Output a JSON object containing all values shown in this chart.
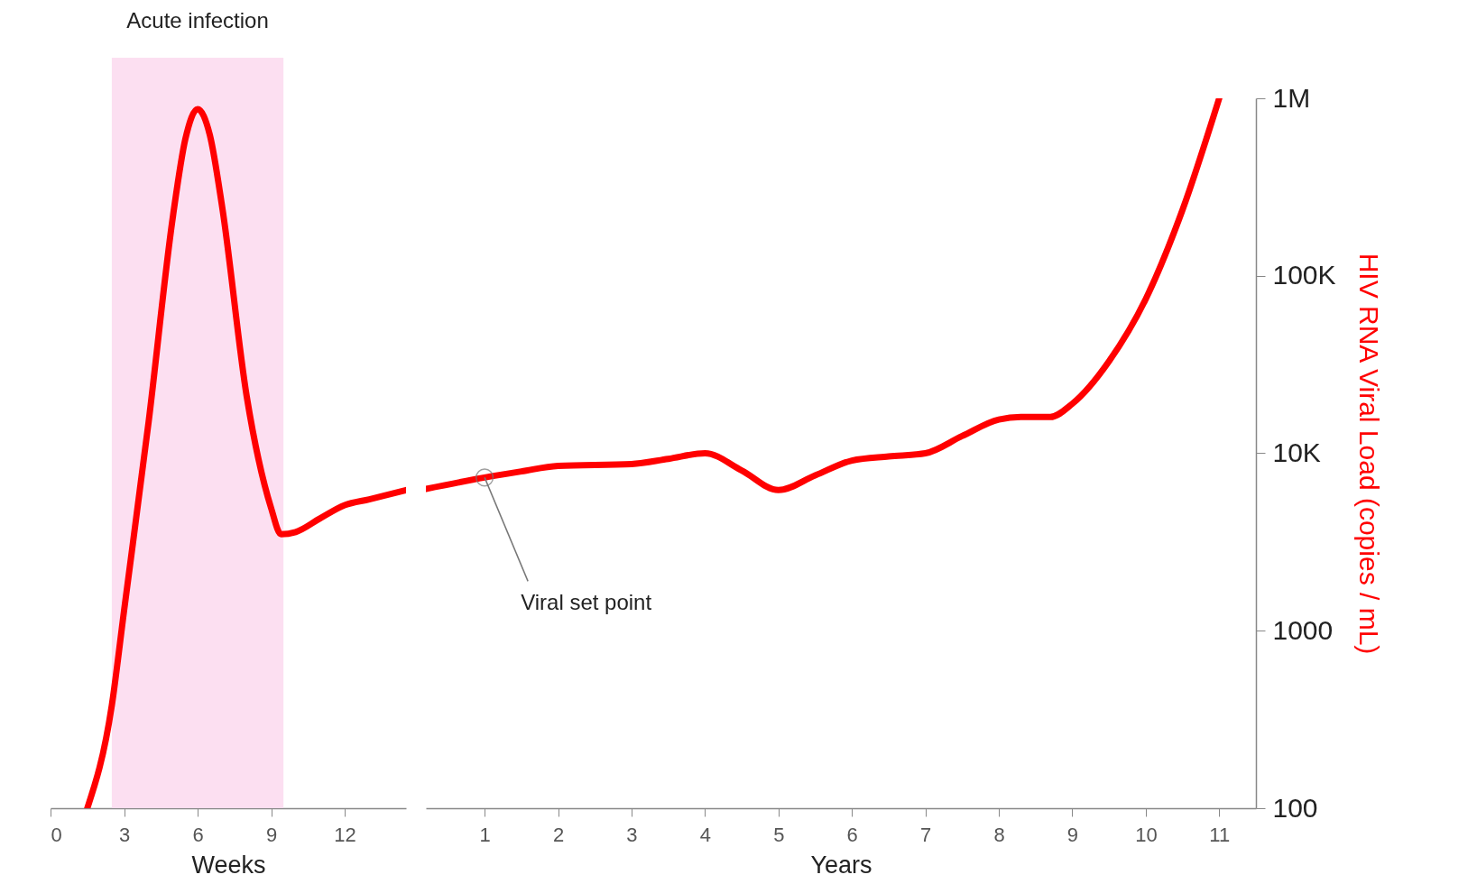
{
  "chart_data": [
    {
      "type": "line",
      "xlabel": "Weeks",
      "xlim": [
        0,
        14.5
      ],
      "xticks": [
        0,
        3,
        6,
        9,
        12
      ],
      "ylim": [
        100,
        1000000
      ],
      "log": true,
      "tick_labels": "x",
      "line_style": "solid",
      "x": [
        1.5,
        2.5,
        3,
        4,
        5,
        5.5,
        6,
        6.5,
        7,
        8,
        9,
        9.4,
        10,
        11,
        12,
        13,
        14.5
      ],
      "series": [
        {
          "color": "#ff0000",
          "values": [
            100,
            380,
            1300,
            15000,
            220000,
            590000,
            870000,
            620000,
            245000,
            21000,
            4900,
            3500,
            3600,
            4300,
            5100,
            5500,
            6200
          ]
        }
      ],
      "bands": [
        {
          "axis": "x",
          "from": 2.5,
          "to": 9.5,
          "label": "Acute infection",
          "color": "#fcdcf0"
        }
      ]
    },
    {
      "type": "line",
      "xlabel": "Years",
      "ylabel": "HIV RNA Viral Load (copies / mL)",
      "xlim": [
        0.2,
        11.5
      ],
      "xticks": [
        1,
        2,
        3,
        4,
        5,
        6,
        7,
        8,
        9,
        10,
        11
      ],
      "ylim": [
        100,
        1000000
      ],
      "log": true,
      "line_style": "solid",
      "yticks": [
        100,
        1000,
        {
          "value": 10000,
          "label": "10K"
        },
        {
          "value": 100000,
          "label": "100K"
        },
        {
          "value": 1000000,
          "label": "1M"
        }
      ],
      "x": [
        0.2,
        1,
        1.5,
        2,
        3,
        3.5,
        4,
        4.5,
        5,
        5.5,
        6,
        6.5,
        7,
        7.5,
        8,
        8.3,
        8.7,
        9,
        9.5,
        10,
        10.5,
        11
      ],
      "series": [
        {
          "color": "#ff0000",
          "values": [
            6300,
            7300,
            7900,
            8500,
            8700,
            9300,
            10000,
            8000,
            6200,
            7500,
            9100,
            9600,
            10000,
            12500,
            15500,
            16000,
            16000,
            19000,
            33000,
            74000,
            235000,
            1000000
          ]
        }
      ],
      "annotations": [
        {
          "text": "Viral set point",
          "x": 1,
          "y": 7300
        }
      ]
    }
  ]
}
